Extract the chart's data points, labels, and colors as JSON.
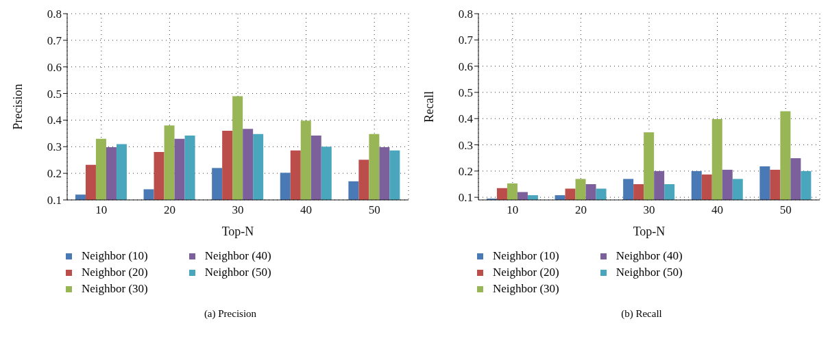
{
  "chart_data": [
    {
      "type": "bar",
      "xlabel": "Top-N",
      "ylabel": "Precision",
      "categories": [
        "10",
        "20",
        "30",
        "40",
        "50"
      ],
      "series": [
        {
          "name": "Neighbor (10)",
          "color": "#4a7ab5",
          "values": [
            0.12,
            0.14,
            0.22,
            0.202,
            0.17
          ]
        },
        {
          "name": "Neighbor (20)",
          "color": "#bb4d4a",
          "values": [
            0.232,
            0.28,
            0.36,
            0.286,
            0.251
          ]
        },
        {
          "name": "Neighbor (30)",
          "color": "#98b656",
          "values": [
            0.33,
            0.38,
            0.49,
            0.398,
            0.348
          ]
        },
        {
          "name": "Neighbor (40)",
          "color": "#7b609c",
          "values": [
            0.298,
            0.33,
            0.367,
            0.342,
            0.298
          ]
        },
        {
          "name": "Neighbor (50)",
          "color": "#4aa6bd",
          "values": [
            0.31,
            0.342,
            0.348,
            0.3,
            0.286
          ]
        }
      ],
      "ylim": [
        0.1,
        0.8
      ],
      "yticks": [
        0.1,
        0.2,
        0.3,
        0.4,
        0.5,
        0.6,
        0.7,
        0.8
      ],
      "grid": true,
      "legend": "bottom",
      "annotations": [
        "(a)  Precision"
      ]
    },
    {
      "type": "bar",
      "xlabel": "Top-N",
      "ylabel": "Recall",
      "categories": [
        "10",
        "20",
        "30",
        "40",
        "50"
      ],
      "series": [
        {
          "name": "Neighbor (10)",
          "color": "#4a7ab5",
          "values": [
            0.095,
            0.108,
            0.17,
            0.2,
            0.218
          ]
        },
        {
          "name": "Neighbor (20)",
          "color": "#bb4d4a",
          "values": [
            0.135,
            0.133,
            0.15,
            0.187,
            0.205
          ]
        },
        {
          "name": "Neighbor (30)",
          "color": "#98b656",
          "values": [
            0.153,
            0.17,
            0.348,
            0.398,
            0.428
          ]
        },
        {
          "name": "Neighbor (40)",
          "color": "#7b609c",
          "values": [
            0.12,
            0.15,
            0.2,
            0.205,
            0.249
          ]
        },
        {
          "name": "Neighbor (50)",
          "color": "#4aa6bd",
          "values": [
            0.108,
            0.133,
            0.15,
            0.17,
            0.2
          ]
        }
      ],
      "ylim": [
        0.09,
        0.8
      ],
      "yticks": [
        0.1,
        0.2,
        0.3,
        0.4,
        0.5,
        0.6,
        0.7,
        0.8
      ],
      "grid": true,
      "legend": "bottom",
      "annotations": [
        "(b)  Recall"
      ]
    }
  ]
}
